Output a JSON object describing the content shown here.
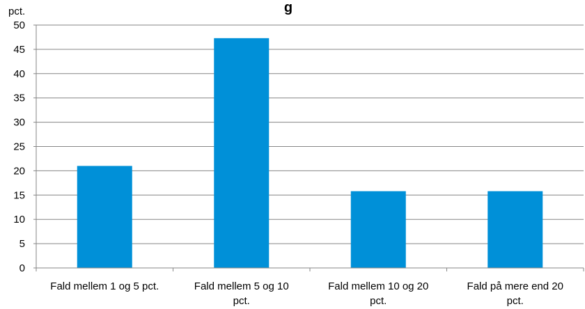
{
  "chart_data": {
    "type": "bar",
    "title": "g",
    "ylabel": "pct.",
    "xlabel": "",
    "ylim": [
      0,
      50
    ],
    "yticks": [
      0,
      5,
      10,
      15,
      20,
      25,
      30,
      35,
      40,
      45,
      50
    ],
    "grid": true,
    "categories": [
      [
        "Fald mellem 1 og 5 pct."
      ],
      [
        "Fald mellem 5 og 10",
        "pct."
      ],
      [
        "Fald mellem 10 og 20",
        "pct."
      ],
      [
        "Fald på mere end 20",
        "pct."
      ]
    ],
    "series": [
      {
        "values": [
          21,
          47.3,
          15.8,
          15.8
        ]
      }
    ],
    "colors": {
      "bar": "#0090d8",
      "grid": "#868686",
      "axis": "#868686"
    }
  }
}
